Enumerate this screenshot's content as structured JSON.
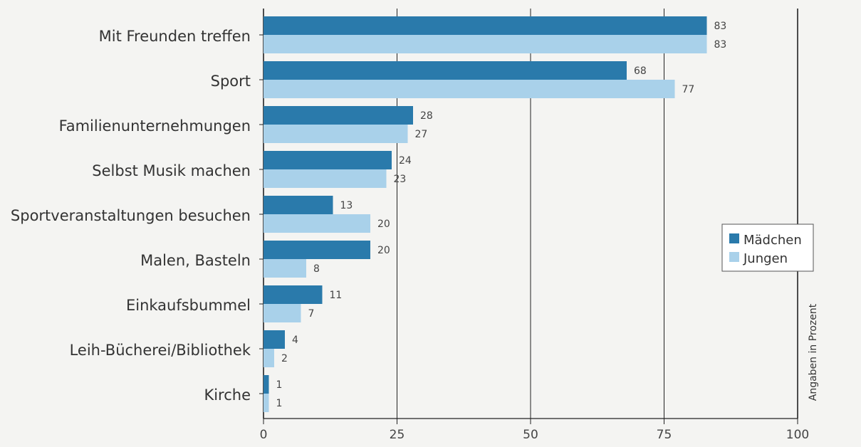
{
  "chart_data": {
    "type": "bar",
    "orientation": "horizontal",
    "categories": [
      "Mit Freunden treffen",
      "Sport",
      "Familienunternehmungen",
      "Selbst Musik machen",
      "Sportveranstaltungen besuchen",
      "Malen, Basteln",
      "Einkaufsbummel",
      "Leih-Bücherei/Bibliothek",
      "Kirche"
    ],
    "series": [
      {
        "name": "Mädchen",
        "values": [
          83,
          68,
          28,
          24,
          13,
          20,
          11,
          4,
          1
        ],
        "color": "#2a7aab"
      },
      {
        "name": "Jungen",
        "values": [
          83,
          77,
          27,
          23,
          20,
          8,
          7,
          2,
          1
        ],
        "color": "#a9d1ea"
      }
    ],
    "xlim": [
      0,
      100
    ],
    "xticks": [
      "0",
      "25",
      "50",
      "75",
      "100"
    ],
    "side_label": "Angaben in Prozent",
    "legend_position": "right",
    "grid": "vertical lines at ticks"
  }
}
